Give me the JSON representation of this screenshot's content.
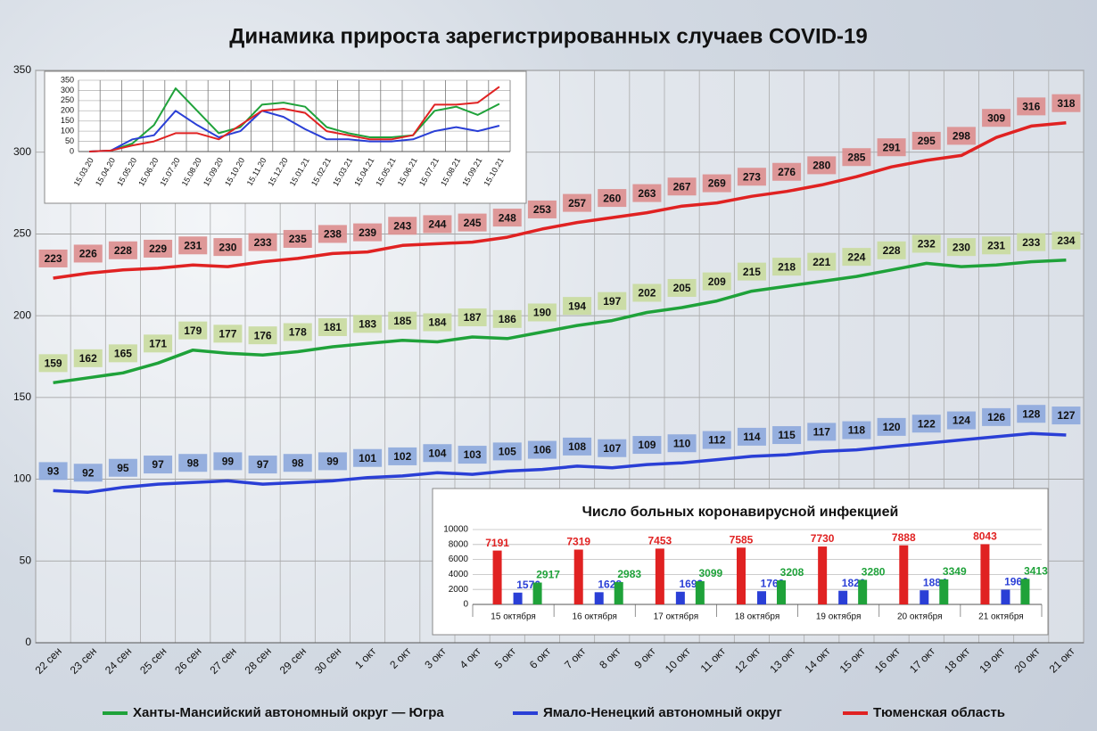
{
  "chart_data": [
    {
      "type": "line",
      "title": "Динамика прироста зарегистрированных случаев COVID-19",
      "categories": [
        "22 сен",
        "23 сен",
        "24 сен",
        "25 сен",
        "26 сен",
        "27 сен",
        "28 сен",
        "29 сен",
        "30 сен",
        "1 окт",
        "2 окт",
        "3 окт",
        "4 окт",
        "5 окт",
        "6 окт",
        "7 окт",
        "8 окт",
        "9 окт",
        "10 окт",
        "11 окт",
        "12 окт",
        "13 окт",
        "14 окт",
        "15 окт",
        "16 окт",
        "17 окт",
        "18 окт",
        "19 окт",
        "20 окт",
        "21 окт"
      ],
      "series": [
        {
          "name": "Ханты-Мансийский автономный округ — Югра",
          "color": "#1fa23a",
          "values": [
            159,
            162,
            165,
            171,
            179,
            177,
            176,
            178,
            181,
            183,
            185,
            184,
            187,
            186,
            190,
            194,
            197,
            202,
            205,
            209,
            215,
            218,
            221,
            224,
            228,
            232,
            230,
            231,
            233,
            234
          ]
        },
        {
          "name": "Ямало-Ненецкий автономный округ",
          "color": "#2a3fd6",
          "values": [
            93,
            92,
            95,
            97,
            98,
            99,
            97,
            98,
            99,
            101,
            102,
            104,
            103,
            105,
            106,
            108,
            107,
            109,
            110,
            112,
            114,
            115,
            117,
            118,
            120,
            122,
            124,
            126,
            128,
            127
          ]
        },
        {
          "name": "Тюменская область",
          "color": "#e02222",
          "values": [
            223,
            226,
            228,
            229,
            231,
            230,
            233,
            235,
            238,
            239,
            243,
            244,
            245,
            248,
            253,
            257,
            260,
            263,
            267,
            269,
            273,
            276,
            280,
            285,
            291,
            295,
            298,
            309,
            316,
            318
          ]
        }
      ],
      "ylim": [
        0,
        350
      ],
      "yticks": [
        0,
        50,
        100,
        150,
        200,
        250,
        300,
        350
      ],
      "grid": true,
      "legend": "bottom"
    },
    {
      "type": "line",
      "categories": [
        "15.03.20",
        "15.04.20",
        "15.05.20",
        "15.06.20",
        "15.07.20",
        "15.08.20",
        "15.09.20",
        "15.10.20",
        "15.11.20",
        "15.12.20",
        "15.01.21",
        "15.02.21",
        "15.03.21",
        "15.04.21",
        "15.05.21",
        "15.06.21",
        "15.07.21",
        "15.08.21",
        "15.09.21",
        "15.10.21"
      ],
      "series": [
        {
          "color": "#1fa23a",
          "values": [
            0,
            5,
            40,
            130,
            310,
            200,
            90,
            120,
            230,
            240,
            220,
            120,
            90,
            70,
            70,
            80,
            200,
            220,
            180,
            234
          ]
        },
        {
          "color": "#2a3fd6",
          "values": [
            0,
            5,
            60,
            80,
            200,
            130,
            70,
            100,
            200,
            170,
            110,
            60,
            60,
            50,
            50,
            60,
            100,
            120,
            100,
            127
          ]
        },
        {
          "color": "#e02222",
          "values": [
            0,
            5,
            30,
            50,
            90,
            90,
            60,
            130,
            200,
            210,
            190,
            100,
            80,
            60,
            60,
            80,
            230,
            230,
            240,
            318
          ]
        }
      ],
      "ylim": [
        0,
        350
      ],
      "yticks": [
        0,
        50,
        100,
        150,
        200,
        250,
        300,
        350
      ],
      "grid": true
    },
    {
      "type": "bar",
      "title": "Число больных коронавирусной инфекцией",
      "categories": [
        "15 октября",
        "16 октября",
        "17 октября",
        "18 октября",
        "19 октября",
        "20 октября",
        "21 октября"
      ],
      "series": [
        {
          "color": "#e02222",
          "values": [
            7191,
            7319,
            7453,
            7585,
            7730,
            7888,
            8043
          ]
        },
        {
          "color": "#2a3fd6",
          "values": [
            1576,
            1628,
            1693,
            1763,
            1820,
            1884,
            1966
          ]
        },
        {
          "color": "#1fa23a",
          "values": [
            2917,
            2983,
            3099,
            3208,
            3280,
            3349,
            3413
          ]
        }
      ],
      "ylim": [
        0,
        10000
      ],
      "yticks": [
        0,
        2000,
        4000,
        6000,
        8000,
        10000
      ],
      "grid": true
    }
  ]
}
